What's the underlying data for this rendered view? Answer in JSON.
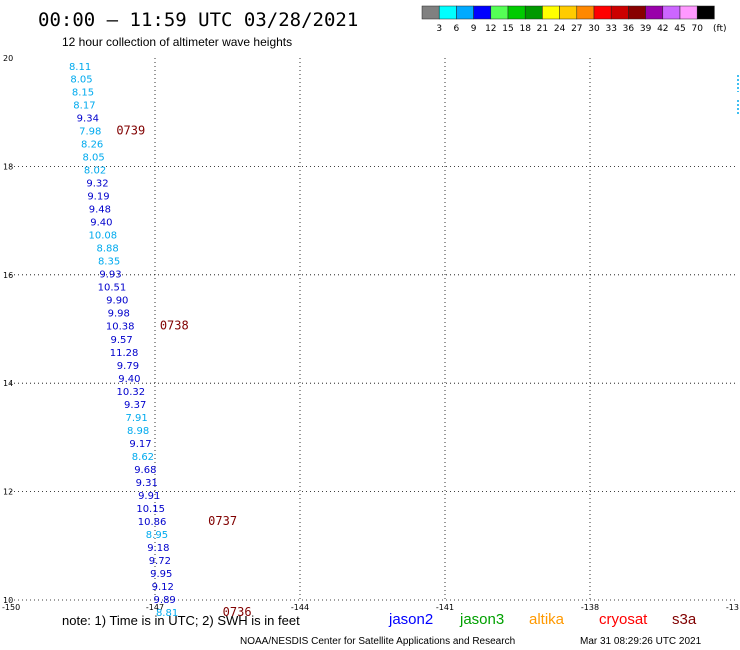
{
  "header": {
    "title": "00:00 – 11:59 UTC 03/28/2021",
    "subtitle": "12 hour collection of altimeter wave heights"
  },
  "color_scale": {
    "labels": [
      "3",
      "6",
      "9",
      "12",
      "15",
      "18",
      "21",
      "24",
      "27",
      "30",
      "33",
      "36",
      "39",
      "42",
      "45",
      "70"
    ],
    "unit": "(ft)",
    "colors": [
      "#808080",
      "#00ffff",
      "#00aaff",
      "#0000ff",
      "#55ff55",
      "#00cc00",
      "#009900",
      "#ffff00",
      "#ffcc00",
      "#ff8800",
      "#ff0000",
      "#cc0000",
      "#880000",
      "#9900aa",
      "#cc66ff",
      "#ff99ff",
      "#000000"
    ]
  },
  "footer": {
    "note": "note: 1) Time is in UTC; 2) SWH is in feet",
    "satellites": [
      {
        "name": "jason2",
        "color": "#0000ff"
      },
      {
        "name": "jason3",
        "color": "#00a000"
      },
      {
        "name": "altika",
        "color": "#ff9900"
      },
      {
        "name": "cryosat",
        "color": "#ff0000"
      },
      {
        "name": "s3a",
        "color": "#800000"
      }
    ],
    "credit": "NOAA/NESDIS Center for Satellite Applications and Research",
    "timestamp": "Mar 31 08:29:26 UTC 2021"
  },
  "colors": {
    "light_blue": "#00aaee",
    "dark_blue": "#0000cc",
    "time_label": "#800000"
  },
  "chart_data": {
    "type": "scatter",
    "x_ticks": [
      "-150",
      "-147",
      "-144",
      "-141",
      "-138",
      "-13"
    ],
    "y_ticks": [
      "20",
      "18",
      "16",
      "14",
      "12",
      "10"
    ],
    "xlim": [
      -150,
      -135
    ],
    "ylim": [
      10,
      20
    ],
    "grid": true,
    "points": [
      {
        "lon": -148.55,
        "lat": 19.85,
        "value": "8.11",
        "color": "light_blue"
      },
      {
        "lon": -148.52,
        "lat": 19.62,
        "value": "8.05",
        "color": "light_blue"
      },
      {
        "lon": -148.49,
        "lat": 19.38,
        "value": "8.15",
        "color": "light_blue"
      },
      {
        "lon": -148.46,
        "lat": 19.14,
        "value": "8.17",
        "color": "light_blue"
      },
      {
        "lon": -148.39,
        "lat": 18.9,
        "value": "9.34",
        "color": "dark_blue"
      },
      {
        "lon": -148.34,
        "lat": 18.66,
        "value": "7.98",
        "color": "light_blue"
      },
      {
        "lon": -148.3,
        "lat": 18.42,
        "value": "8.26",
        "color": "light_blue"
      },
      {
        "lon": -148.27,
        "lat": 18.18,
        "value": "8.05",
        "color": "light_blue"
      },
      {
        "lon": -148.24,
        "lat": 17.94,
        "value": "8.02",
        "color": "light_blue"
      },
      {
        "lon": -148.19,
        "lat": 17.7,
        "value": "9.32",
        "color": "dark_blue"
      },
      {
        "lon": -148.17,
        "lat": 17.46,
        "value": "9.19",
        "color": "dark_blue"
      },
      {
        "lon": -148.14,
        "lat": 17.22,
        "value": "9.48",
        "color": "dark_blue"
      },
      {
        "lon": -148.11,
        "lat": 16.98,
        "value": "9.40",
        "color": "dark_blue"
      },
      {
        "lon": -148.08,
        "lat": 16.74,
        "value": "10.08",
        "color": "light_blue"
      },
      {
        "lon": -147.98,
        "lat": 16.5,
        "value": "8.88",
        "color": "light_blue"
      },
      {
        "lon": -147.95,
        "lat": 16.26,
        "value": "8.35",
        "color": "light_blue"
      },
      {
        "lon": -147.92,
        "lat": 16.02,
        "value": "9.93",
        "color": "dark_blue"
      },
      {
        "lon": -147.89,
        "lat": 15.78,
        "value": "10.51",
        "color": "dark_blue"
      },
      {
        "lon": -147.78,
        "lat": 15.54,
        "value": "9.90",
        "color": "dark_blue"
      },
      {
        "lon": -147.75,
        "lat": 15.3,
        "value": "9.98",
        "color": "dark_blue"
      },
      {
        "lon": -147.72,
        "lat": 15.06,
        "value": "10.38",
        "color": "dark_blue"
      },
      {
        "lon": -147.69,
        "lat": 14.82,
        "value": "9.57",
        "color": "dark_blue"
      },
      {
        "lon": -147.64,
        "lat": 14.58,
        "value": "11.28",
        "color": "dark_blue"
      },
      {
        "lon": -147.56,
        "lat": 14.34,
        "value": "9.79",
        "color": "dark_blue"
      },
      {
        "lon": -147.53,
        "lat": 14.1,
        "value": "9.40",
        "color": "dark_blue"
      },
      {
        "lon": -147.5,
        "lat": 13.86,
        "value": "10.32",
        "color": "dark_blue"
      },
      {
        "lon": -147.41,
        "lat": 13.62,
        "value": "9.37",
        "color": "dark_blue"
      },
      {
        "lon": -147.38,
        "lat": 13.38,
        "value": "7.91",
        "color": "light_blue"
      },
      {
        "lon": -147.35,
        "lat": 13.14,
        "value": "8.98",
        "color": "light_blue"
      },
      {
        "lon": -147.3,
        "lat": 12.9,
        "value": "9.17",
        "color": "dark_blue"
      },
      {
        "lon": -147.25,
        "lat": 12.66,
        "value": "8.62",
        "color": "light_blue"
      },
      {
        "lon": -147.2,
        "lat": 12.42,
        "value": "9.68",
        "color": "dark_blue"
      },
      {
        "lon": -147.17,
        "lat": 12.18,
        "value": "9.31",
        "color": "dark_blue"
      },
      {
        "lon": -147.12,
        "lat": 11.94,
        "value": "9.91",
        "color": "dark_blue"
      },
      {
        "lon": -147.09,
        "lat": 11.7,
        "value": "10.15",
        "color": "dark_blue"
      },
      {
        "lon": -147.06,
        "lat": 11.46,
        "value": "10.86",
        "color": "dark_blue"
      },
      {
        "lon": -146.96,
        "lat": 11.22,
        "value": "8.95",
        "color": "light_blue"
      },
      {
        "lon": -146.93,
        "lat": 10.98,
        "value": "9.18",
        "color": "dark_blue"
      },
      {
        "lon": -146.9,
        "lat": 10.74,
        "value": "9.72",
        "color": "dark_blue"
      },
      {
        "lon": -146.87,
        "lat": 10.5,
        "value": "9.95",
        "color": "dark_blue"
      },
      {
        "lon": -146.84,
        "lat": 10.26,
        "value": "9.12",
        "color": "dark_blue"
      },
      {
        "lon": -146.8,
        "lat": 10.02,
        "value": "9.89",
        "color": "dark_blue"
      },
      {
        "lon": -146.75,
        "lat": 9.78,
        "value": "8.81",
        "color": "light_blue"
      }
    ],
    "time_labels": [
      {
        "lon": -147.8,
        "lat": 18.66,
        "text": "0739"
      },
      {
        "lon": -146.9,
        "lat": 15.06,
        "text": "0738"
      },
      {
        "lon": -145.9,
        "lat": 11.46,
        "text": "0737"
      },
      {
        "lon": -145.6,
        "lat": 9.78,
        "text": "0736"
      }
    ]
  }
}
